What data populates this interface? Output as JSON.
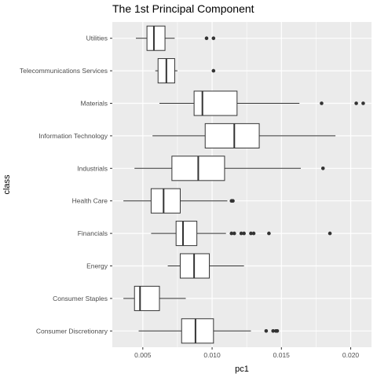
{
  "chart_data": {
    "type": "boxplot",
    "orientation": "horizontal",
    "title": "The 1st Principal Component",
    "xlabel": "pc1",
    "ylabel": "class",
    "xlim": [
      0.0028,
      0.0215
    ],
    "x_ticks": [
      0.005,
      0.01,
      0.015,
      0.02
    ],
    "x_tick_labels": [
      "0.005",
      "0.010",
      "0.015",
      "0.020"
    ],
    "grid": true,
    "background": "#ebebeb",
    "grid_color": "#ffffff",
    "box_fill": "#ffffff",
    "box_stroke": "#333333",
    "outlier_color": "#333333",
    "categories": [
      {
        "name": "Utilities",
        "whisker_low": 0.0045,
        "q1": 0.0053,
        "median": 0.0058,
        "q3": 0.0066,
        "whisker_high": 0.0073,
        "outliers": [
          0.0096,
          0.0101
        ]
      },
      {
        "name": "Telecommunications Services",
        "whisker_low": 0.0059,
        "q1": 0.0061,
        "median": 0.0067,
        "q3": 0.0073,
        "whisker_high": 0.0075,
        "outliers": [
          0.0101
        ]
      },
      {
        "name": "Materials",
        "whisker_low": 0.0062,
        "q1": 0.0087,
        "median": 0.0093,
        "q3": 0.0118,
        "whisker_high": 0.0163,
        "outliers": [
          0.0179,
          0.0204,
          0.0209
        ]
      },
      {
        "name": "Information Technology",
        "whisker_low": 0.0057,
        "q1": 0.0095,
        "median": 0.0116,
        "q3": 0.0134,
        "whisker_high": 0.0189,
        "outliers": []
      },
      {
        "name": "Industrials",
        "whisker_low": 0.0044,
        "q1": 0.0071,
        "median": 0.009,
        "q3": 0.0109,
        "whisker_high": 0.0164,
        "outliers": [
          0.018
        ]
      },
      {
        "name": "Health Care",
        "whisker_low": 0.0036,
        "q1": 0.0056,
        "median": 0.0065,
        "q3": 0.0077,
        "whisker_high": 0.0111,
        "outliers": [
          0.0114,
          0.0115
        ]
      },
      {
        "name": "Financials",
        "whisker_low": 0.0056,
        "q1": 0.0074,
        "median": 0.0079,
        "q3": 0.0089,
        "whisker_high": 0.011,
        "outliers": [
          0.0114,
          0.0116,
          0.0121,
          0.0123,
          0.0128,
          0.013,
          0.0141,
          0.0185
        ]
      },
      {
        "name": "Energy",
        "whisker_low": 0.0068,
        "q1": 0.0077,
        "median": 0.0087,
        "q3": 0.0098,
        "whisker_high": 0.0123,
        "outliers": []
      },
      {
        "name": "Consumer Staples",
        "whisker_low": 0.0036,
        "q1": 0.0044,
        "median": 0.0048,
        "q3": 0.0062,
        "whisker_high": 0.0081,
        "outliers": []
      },
      {
        "name": "Consumer Discretionary",
        "whisker_low": 0.0047,
        "q1": 0.0078,
        "median": 0.0088,
        "q3": 0.0101,
        "whisker_high": 0.0128,
        "outliers": [
          0.0139,
          0.0144,
          0.0146,
          0.0147
        ]
      }
    ]
  }
}
